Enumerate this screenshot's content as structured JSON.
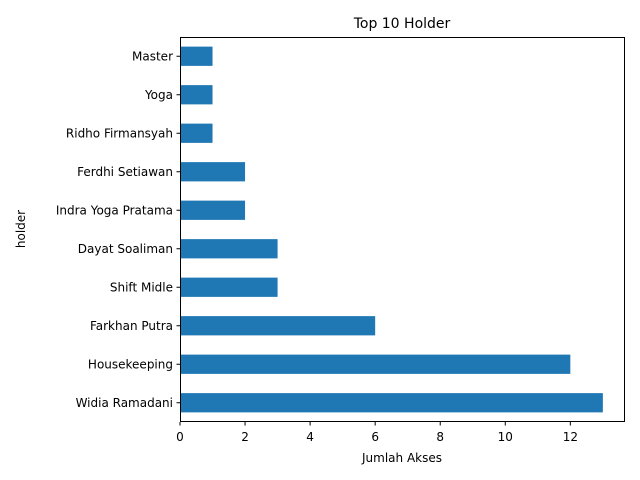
{
  "chart_data": {
    "type": "bar",
    "orientation": "horizontal",
    "title": "Top 10 Holder",
    "xlabel": "Jumlah Akses",
    "ylabel": "holder",
    "categories": [
      "Widia Ramadani",
      "Housekeeping",
      "Farkhan Putra",
      "Shift Midle",
      "Dayat Soaliman",
      "Indra Yoga Pratama",
      "Ferdhi Setiawan",
      "Ridho Firmansyah",
      "Yoga",
      "Master"
    ],
    "values": [
      13,
      12,
      6,
      3,
      3,
      2,
      2,
      1,
      1,
      1
    ],
    "xticks": [
      "0",
      "2",
      "4",
      "6",
      "8",
      "10",
      "12"
    ],
    "xlim": [
      0,
      13.65
    ],
    "grid": false,
    "bar_color": "#1f77b4"
  }
}
